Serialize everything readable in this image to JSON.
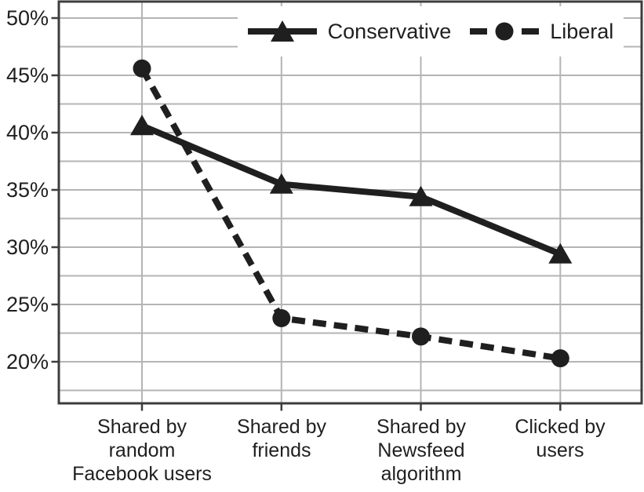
{
  "chart_data": {
    "type": "line",
    "title": "",
    "xlabel": "",
    "ylabel": "",
    "categories": [
      "Shared by\nrandom\nFacebook users",
      "Shared by\nfriends",
      "Shared by\nNewsfeed\nalgorithm",
      "Clicked by\nusers"
    ],
    "series": [
      {
        "name": "Conservative",
        "values": [
          40.6,
          35.5,
          34.4,
          29.4
        ],
        "line_style": "solid",
        "marker": "triangle"
      },
      {
        "name": "Liberal",
        "values": [
          45.6,
          23.8,
          22.2,
          20.3
        ],
        "line_style": "dashed",
        "marker": "circle"
      }
    ],
    "ytick_labels": [
      "50%",
      "45%",
      "40%",
      "35%",
      "30%",
      "25%",
      "20%"
    ],
    "ytick_values": [
      50,
      45,
      40,
      35,
      30,
      25,
      20
    ],
    "ylim": [
      16.4,
      51.4
    ],
    "minor_grid_step": 2.5,
    "grid": true,
    "legend_position": "top-inside",
    "colors": {
      "series": "#1f1f1f",
      "grid": "#b4b4b4",
      "frame": "#3d3d3d",
      "text": "#1f1f1f",
      "legend_background": "#ffffff"
    }
  }
}
